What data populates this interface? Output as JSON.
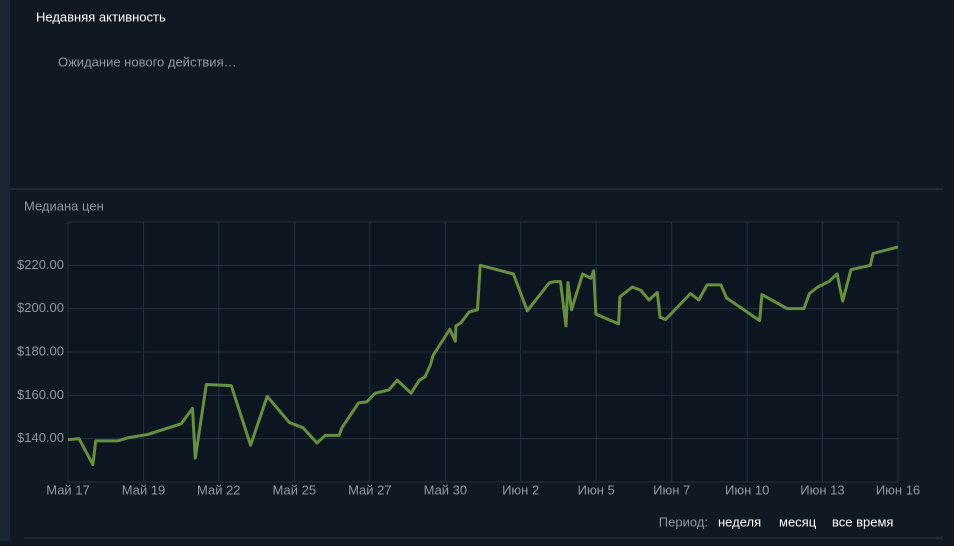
{
  "header": {
    "title": "Недавняя активность"
  },
  "status": "Ожидание нового действия…",
  "chart_data": {
    "type": "line",
    "title": "Медиана цен",
    "x": [
      0,
      0.4,
      0.9,
      1.0,
      1.8,
      2.2,
      2.9,
      4.0,
      4.1,
      4.5,
      4.6,
      5.0,
      5.9,
      6.6,
      7.2,
      8.0,
      8.5,
      9.0,
      9.3,
      9.8,
      9.9,
      10.5,
      10.8,
      11.1,
      11.6,
      11.9,
      12.4,
      12.7,
      12.9,
      13.1,
      13.2,
      13.8,
      14.0,
      14.02,
      14.2,
      14.5,
      14.8,
      14.9,
      16.1,
      16.6,
      17.4,
      17.6,
      17.8,
      18.0,
      18.07,
      18.2,
      18.6,
      18.9,
      19.0,
      19.08,
      19.9,
      19.95,
      20.4,
      20.7,
      21.0,
      21.3,
      21.4,
      21.6,
      22.5,
      22.8,
      23.1,
      23.6,
      23.8,
      25.0,
      25.08,
      26.0,
      26.6,
      26.8,
      27.1,
      27.5,
      27.8,
      28.0,
      28.3,
      29.0,
      29.1,
      30
    ],
    "series": [
      {
        "name": "Медиана цен",
        "color": "#688f3e",
        "values": [
          139.5,
          140,
          128,
          139,
          139,
          140.5,
          142,
          146.5,
          147,
          154,
          131,
          165,
          164.5,
          137,
          159.5,
          147.5,
          145,
          138,
          141.5,
          141.5,
          145,
          156.5,
          157,
          161,
          162.5,
          167,
          161,
          167,
          168.5,
          174,
          178.5,
          190.5,
          185,
          192,
          193.5,
          198.5,
          199.5,
          220,
          216,
          199,
          212,
          212.5,
          212.5,
          192,
          212,
          199.5,
          216,
          214,
          217.5,
          197.5,
          193,
          205.5,
          210,
          208.5,
          204,
          207.5,
          196,
          195,
          207,
          204,
          211,
          211,
          205,
          194.5,
          206.5,
          200,
          200,
          207,
          210,
          212.5,
          216,
          203.5,
          218,
          220,
          225.5,
          228.5
        ]
      }
    ],
    "xlim": [
      0,
      30
    ],
    "xticks": [
      {
        "value": 0,
        "label": "Май 17"
      },
      {
        "value": 2.73,
        "label": "Май 19"
      },
      {
        "value": 5.45,
        "label": "Май 22"
      },
      {
        "value": 8.18,
        "label": "Май 25"
      },
      {
        "value": 10.91,
        "label": "Май 27"
      },
      {
        "value": 13.64,
        "label": "Май 30"
      },
      {
        "value": 16.36,
        "label": "Июн 2"
      },
      {
        "value": 19.09,
        "label": "Июн 5"
      },
      {
        "value": 21.82,
        "label": "Июн 7"
      },
      {
        "value": 24.55,
        "label": "Июн 10"
      },
      {
        "value": 27.27,
        "label": "Июн 13"
      },
      {
        "value": 30,
        "label": "Июн 16"
      }
    ],
    "ylim": [
      120,
      240
    ],
    "yticks": [
      {
        "value": 140,
        "label": "$140.00"
      },
      {
        "value": 160,
        "label": "$160.00"
      },
      {
        "value": 180,
        "label": "$180.00"
      },
      {
        "value": 200,
        "label": "$200.00"
      },
      {
        "value": 220,
        "label": "$220.00"
      }
    ],
    "grid": true
  },
  "period": {
    "label": "Период:",
    "options": [
      "неделя",
      "месяц",
      "все время"
    ]
  }
}
